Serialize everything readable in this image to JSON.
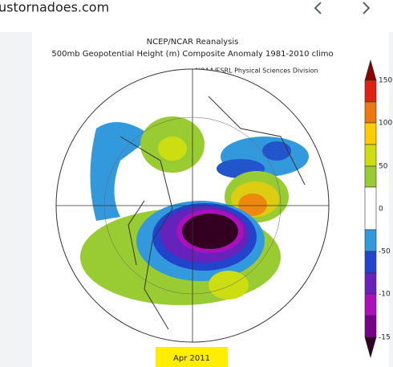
{
  "header": {
    "site": "ustornadoes.com"
  },
  "figure": {
    "title_lines": [
      "NCEP/NCAR Reanalysis",
      "500mb Geopotential Height (m) Composite Anomaly 1981-2010 climo",
      "NOAA/ESRL Physical Sciences Division"
    ],
    "colorbar_labels": [
      "150",
      "100",
      "50",
      "0",
      "-50",
      "-10",
      "-15"
    ],
    "date_label": "Apr 2011"
  }
}
